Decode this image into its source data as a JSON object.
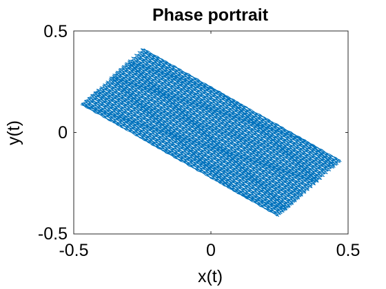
{
  "chart_data": {
    "type": "line",
    "title": "Phase portrait",
    "xlabel": "x(t)",
    "ylabel": "y(t)",
    "xlim": [
      -0.5,
      0.5
    ],
    "ylim": [
      -0.5,
      0.5
    ],
    "xticks": [
      -0.5,
      0,
      0.5
    ],
    "yticks": [
      -0.5,
      0,
      0.5
    ],
    "xtick_labels": [
      "-0.5",
      "0",
      "0.5"
    ],
    "ytick_labels": [
      "-0.5",
      "0",
      "0.5"
    ],
    "grid": false,
    "series_color": "#0072BD",
    "envelope_corners": [
      {
        "x": -0.25,
        "y": 0.42
      },
      {
        "x": 0.48,
        "y": -0.14
      },
      {
        "x": 0.25,
        "y": -0.42
      },
      {
        "x": -0.48,
        "y": 0.14
      }
    ]
  }
}
